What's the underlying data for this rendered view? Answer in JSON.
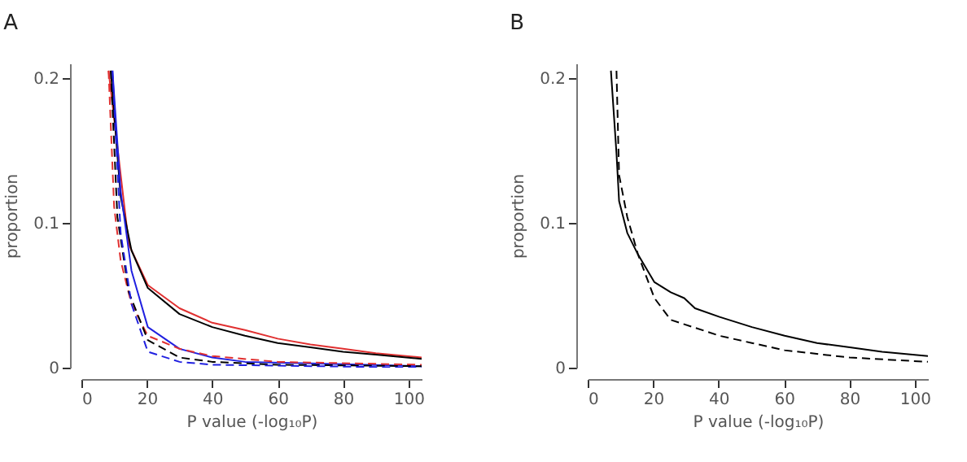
{
  "chart_data": [
    {
      "type": "line",
      "title": "A",
      "xlabel": "P value (-log₁₀P)",
      "ylabel": "proportion",
      "xlim": [
        0,
        104
      ],
      "ylim": [
        0,
        0.21
      ],
      "xticks": [
        0,
        20,
        40,
        60,
        80,
        100
      ],
      "yticks": [
        0,
        0.1,
        0.2
      ],
      "grid": false,
      "marker": "none",
      "series": [
        {
          "color": "#e03030",
          "line_style": "solid",
          "x": [
            8.3,
            14.5,
            20.3,
            30,
            40,
            50,
            60,
            70,
            80,
            90,
            104
          ],
          "values": [
            0.205,
            0.085,
            0.057,
            0.041,
            0.031,
            0.026,
            0.02,
            0.016,
            0.013,
            0.01,
            0.007
          ]
        },
        {
          "color": "#000000",
          "line_style": "solid",
          "x": [
            9,
            12,
            15.3,
            20.3,
            30,
            40,
            50,
            60,
            70,
            80,
            90,
            104
          ],
          "values": [
            0.205,
            0.118,
            0.081,
            0.055,
            0.037,
            0.028,
            0.022,
            0.017,
            0.014,
            0.011,
            0.009,
            0.006
          ]
        },
        {
          "color": "#2020e0",
          "line_style": "solid",
          "x": [
            9.5,
            12,
            15.3,
            20.3,
            30,
            40,
            50,
            70,
            104
          ],
          "values": [
            0.205,
            0.122,
            0.067,
            0.028,
            0.013,
            0.007,
            0.004,
            0.003,
            0.001
          ]
        },
        {
          "color": "#e03030",
          "line_style": "dashed",
          "x": [
            8.3,
            10,
            12,
            15.3,
            20.3,
            30,
            40,
            60,
            104
          ],
          "values": [
            0.205,
            0.111,
            0.074,
            0.044,
            0.022,
            0.013,
            0.008,
            0.004,
            0.002
          ]
        },
        {
          "color": "#000000",
          "line_style": "dashed",
          "x": [
            9,
            11,
            14.5,
            20.3,
            30,
            40,
            60,
            104
          ],
          "values": [
            0.205,
            0.104,
            0.052,
            0.019,
            0.007,
            0.004,
            0.002,
            0.001
          ]
        },
        {
          "color": "#2020e0",
          "line_style": "dashed",
          "x": [
            9.5,
            12,
            15.3,
            20.3,
            30,
            40,
            104
          ],
          "values": [
            0.205,
            0.093,
            0.044,
            0.011,
            0.004,
            0.002,
            0
          ]
        }
      ]
    },
    {
      "type": "line",
      "title": "B",
      "xlabel": "P value (-log₁₀P)",
      "ylabel": "proportion",
      "xlim": [
        0,
        104
      ],
      "ylim": [
        0,
        0.21
      ],
      "xticks": [
        0,
        20,
        40,
        60,
        80,
        100
      ],
      "yticks": [
        0,
        0.1,
        0.2
      ],
      "grid": false,
      "marker": "none",
      "series": [
        {
          "color": "#000000",
          "line_style": "solid",
          "x": [
            7.1,
            8.8,
            9.6,
            12.1,
            15.4,
            20.4,
            25.4,
            29.5,
            32.8,
            40.3,
            50.2,
            60.2,
            70.1,
            80.1,
            90,
            104
          ],
          "values": [
            0.205,
            0.148,
            0.115,
            0.093,
            0.078,
            0.059,
            0.052,
            0.048,
            0.041,
            0.035,
            0.028,
            0.022,
            0.017,
            0.014,
            0.011,
            0.008
          ]
        },
        {
          "color": "#000000",
          "line_style": "dashed",
          "x": [
            8.8,
            9.6,
            12.1,
            15.4,
            20.4,
            25.4,
            40.3,
            50.2,
            60.2,
            80.1,
            104
          ],
          "values": [
            0.205,
            0.133,
            0.104,
            0.078,
            0.048,
            0.033,
            0.022,
            0.017,
            0.012,
            0.007,
            0.004
          ]
        }
      ]
    }
  ]
}
